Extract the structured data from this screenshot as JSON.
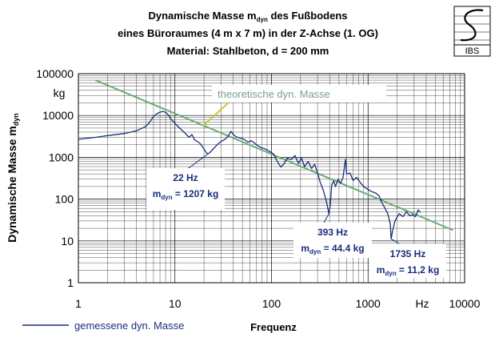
{
  "chart_data": {
    "type": "line",
    "title_lines": [
      {
        "pre": "Dynamische Masse m",
        "sub": "dyn",
        "post": " des Fußbodens"
      },
      {
        "pre": "eines Büroraumes (4 m x 7 m) in der Z-Achse  (1. OG)",
        "sub": "",
        "post": ""
      },
      {
        "pre": "Material: Stahlbeton, d = 200 mm",
        "sub": "",
        "post": ""
      }
    ],
    "ylabel": {
      "pre": "Dynamische Masse m",
      "sub": "dyn"
    },
    "yunit": "kg",
    "xlabel": "Frequenz",
    "xunit": "Hz",
    "x_scale": "log",
    "y_scale": "log",
    "xlim": [
      1,
      10000
    ],
    "ylim": [
      1,
      100000
    ],
    "x_ticks": [
      "1",
      "10",
      "100",
      "1000",
      "10000"
    ],
    "y_ticks": [
      "1",
      "10",
      "100",
      "1000",
      "10000",
      "100000"
    ],
    "grid": true,
    "legend_position": "bottom-left",
    "series": [
      {
        "name": "gemessene dyn. Masse",
        "color": "#1a2e7a",
        "points": [
          [
            1,
            2700
          ],
          [
            1.5,
            3000
          ],
          [
            2,
            3300
          ],
          [
            3,
            3700
          ],
          [
            4,
            4300
          ],
          [
            5,
            5500
          ],
          [
            5.5,
            7000
          ],
          [
            6,
            9500
          ],
          [
            6.5,
            11000
          ],
          [
            7,
            12000
          ],
          [
            7.5,
            12500
          ],
          [
            8,
            12000
          ],
          [
            8.5,
            10500
          ],
          [
            9,
            8500
          ],
          [
            10,
            6500
          ],
          [
            11,
            5200
          ],
          [
            12,
            4300
          ],
          [
            13,
            3600
          ],
          [
            14,
            3000
          ],
          [
            15,
            3500
          ],
          [
            16,
            2600
          ],
          [
            17,
            2400
          ],
          [
            18,
            2200
          ],
          [
            20,
            1600
          ],
          [
            21,
            1300
          ],
          [
            22,
            1207
          ],
          [
            23,
            1300
          ],
          [
            25,
            1600
          ],
          [
            28,
            2100
          ],
          [
            30,
            2400
          ],
          [
            33,
            2700
          ],
          [
            36,
            3300
          ],
          [
            38,
            4200
          ],
          [
            40,
            3600
          ],
          [
            43,
            3100
          ],
          [
            47,
            2900
          ],
          [
            52,
            2700
          ],
          [
            57,
            2300
          ],
          [
            62,
            2500
          ],
          [
            70,
            2000
          ],
          [
            78,
            1700
          ],
          [
            85,
            1600
          ],
          [
            95,
            1400
          ],
          [
            105,
            1200
          ],
          [
            115,
            800
          ],
          [
            125,
            580
          ],
          [
            135,
            700
          ],
          [
            145,
            950
          ],
          [
            160,
            880
          ],
          [
            175,
            1100
          ],
          [
            190,
            720
          ],
          [
            205,
            950
          ],
          [
            220,
            600
          ],
          [
            240,
            800
          ],
          [
            260,
            540
          ],
          [
            280,
            680
          ],
          [
            300,
            420
          ],
          [
            320,
            250
          ],
          [
            345,
            160
          ],
          [
            370,
            90
          ],
          [
            393,
            44.4
          ],
          [
            405,
            70
          ],
          [
            420,
            220
          ],
          [
            440,
            270
          ],
          [
            460,
            200
          ],
          [
            490,
            300
          ],
          [
            520,
            240
          ],
          [
            550,
            330
          ],
          [
            585,
            900
          ],
          [
            600,
            400
          ],
          [
            650,
            420
          ],
          [
            700,
            280
          ],
          [
            760,
            330
          ],
          [
            830,
            250
          ],
          [
            900,
            200
          ],
          [
            1000,
            170
          ],
          [
            1100,
            150
          ],
          [
            1200,
            140
          ],
          [
            1300,
            120
          ],
          [
            1400,
            80
          ],
          [
            1500,
            60
          ],
          [
            1600,
            45
          ],
          [
            1700,
            25
          ],
          [
            1735,
            11.2
          ],
          [
            1800,
            18
          ],
          [
            1900,
            30
          ],
          [
            2100,
            45
          ],
          [
            2300,
            38
          ],
          [
            2500,
            50
          ],
          [
            2700,
            40
          ],
          [
            2900,
            42
          ],
          [
            3100,
            38
          ],
          [
            3300,
            55
          ],
          [
            3500,
            48
          ]
        ]
      },
      {
        "name": "theoretische dyn. Masse",
        "color": "#6bab73",
        "points": [
          [
            1.5,
            70000
          ],
          [
            7600,
            18
          ]
        ]
      }
    ],
    "annotations": [
      {
        "freq": "22 Hz",
        "mass_pre": "m",
        "mass_sub": "dyn",
        "mass_post": " = 1207 kg",
        "x": 22,
        "y": 1207
      },
      {
        "freq": "393 Hz",
        "mass_pre": "m",
        "mass_sub": "dyn",
        "mass_post": " = 44.4 kg",
        "x": 393,
        "y": 44.4
      },
      {
        "freq": "1735 Hz",
        "mass_pre": "m",
        "mass_sub": "dyn",
        "mass_post": " = 11,2 kg",
        "x": 1735,
        "y": 11.2
      }
    ],
    "theoretical_label": "theoretische dyn. Masse"
  },
  "logo": {
    "text": "IBS"
  }
}
